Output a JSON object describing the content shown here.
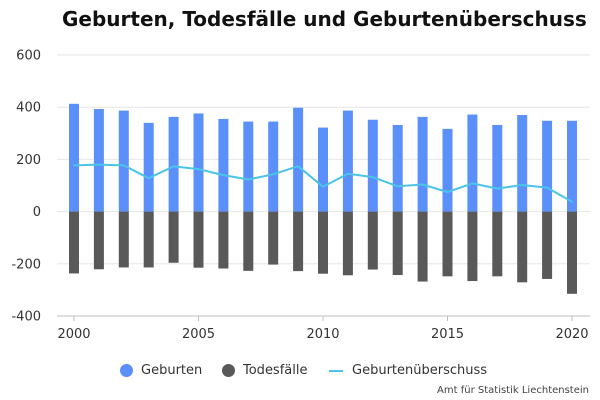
{
  "chart_data": {
    "type": "bar",
    "title": "Geburten, Todesfälle und Geburtenüberschuss",
    "x": [
      2000,
      2001,
      2002,
      2003,
      2004,
      2005,
      2006,
      2007,
      2008,
      2009,
      2010,
      2011,
      2012,
      2013,
      2014,
      2015,
      2016,
      2017,
      2018,
      2019,
      2020
    ],
    "series": [
      {
        "name": "Geburten",
        "type": "bar",
        "color": "#5b8ff9",
        "values": [
          413,
          393,
          387,
          340,
          363,
          376,
          355,
          345,
          345,
          398,
          322,
          387,
          352,
          332,
          363,
          317,
          372,
          332,
          370,
          348,
          348
        ]
      },
      {
        "name": "Todesfälle",
        "type": "bar",
        "color": "#595959",
        "values": [
          -237,
          -221,
          -214,
          -214,
          -196,
          -215,
          -218,
          -227,
          -203,
          -228,
          -238,
          -244,
          -222,
          -243,
          -268,
          -248,
          -266,
          -248,
          -271,
          -258,
          -315
        ]
      },
      {
        "name": "Geburtenüberschuss",
        "type": "line",
        "color": "#4cc3e8",
        "values": [
          177,
          180,
          177,
          128,
          173,
          163,
          140,
          123,
          143,
          174,
          95,
          145,
          132,
          97,
          104,
          75,
          108,
          88,
          102,
          92,
          38
        ]
      }
    ],
    "ylim": [
      -400,
      600
    ],
    "yticks": [
      -400,
      -200,
      0,
      200,
      400,
      600
    ],
    "xticks": [
      2000,
      2005,
      2010,
      2015,
      2020
    ],
    "grid": "horizontal",
    "legend": "bottom",
    "source": "Amt für Statistik Liechtenstein"
  }
}
